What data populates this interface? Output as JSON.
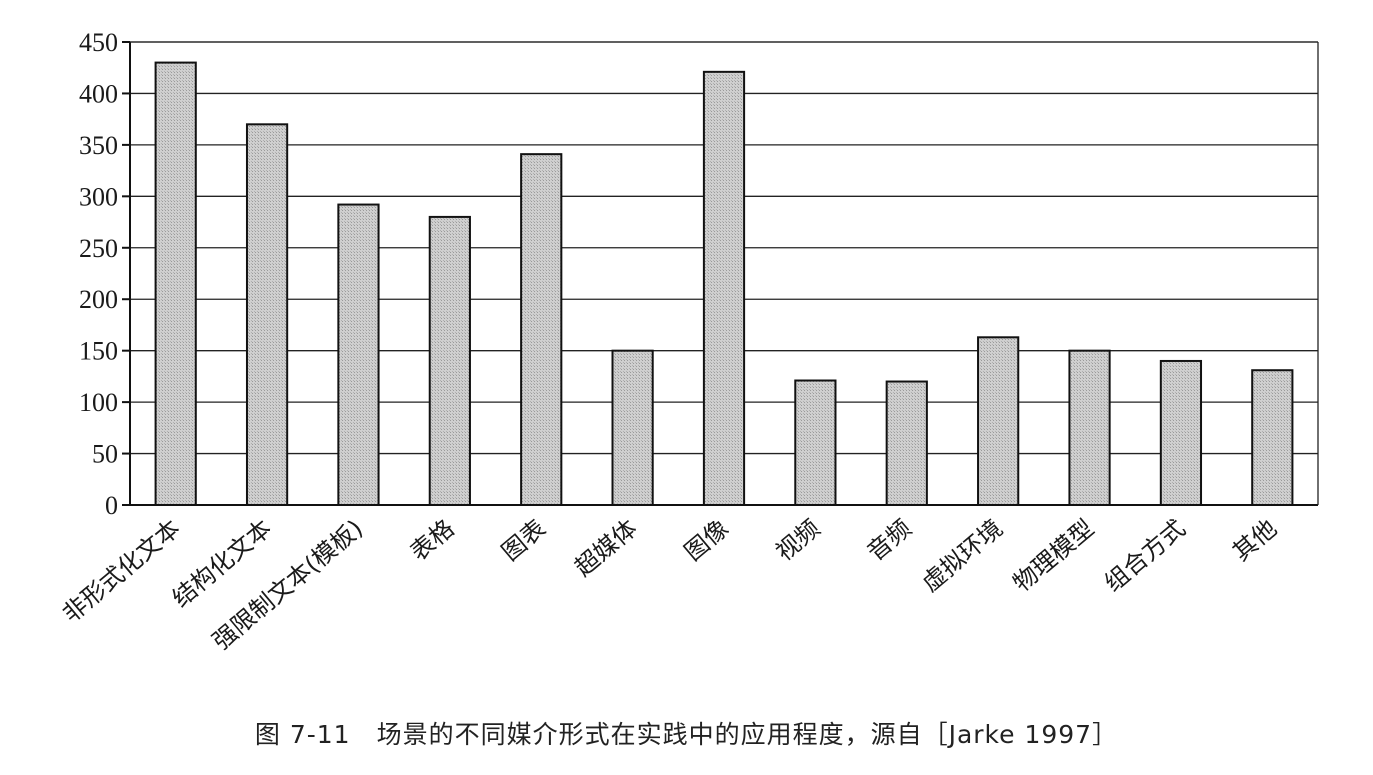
{
  "chart_data": {
    "type": "bar",
    "categories": [
      "非形式化文本",
      "结构化文本",
      "强限制文本(模板)",
      "表格",
      "图表",
      "超媒体",
      "图像",
      "视频",
      "音频",
      "虚拟环境",
      "物理模型",
      "组合方式",
      "其他"
    ],
    "values": [
      430,
      370,
      292,
      280,
      341,
      150,
      421,
      121,
      120,
      163,
      150,
      140,
      131
    ],
    "ylim": [
      0,
      450
    ],
    "yticks": [
      0,
      50,
      100,
      150,
      200,
      250,
      300,
      350,
      400,
      450
    ],
    "grid": true,
    "bar_color": "#c8c8c8",
    "bar_edge_color": "#111111"
  },
  "caption": "图 7-11　场景的不同媒介形式在实践中的应用程度，源自［Jarke 1997］"
}
